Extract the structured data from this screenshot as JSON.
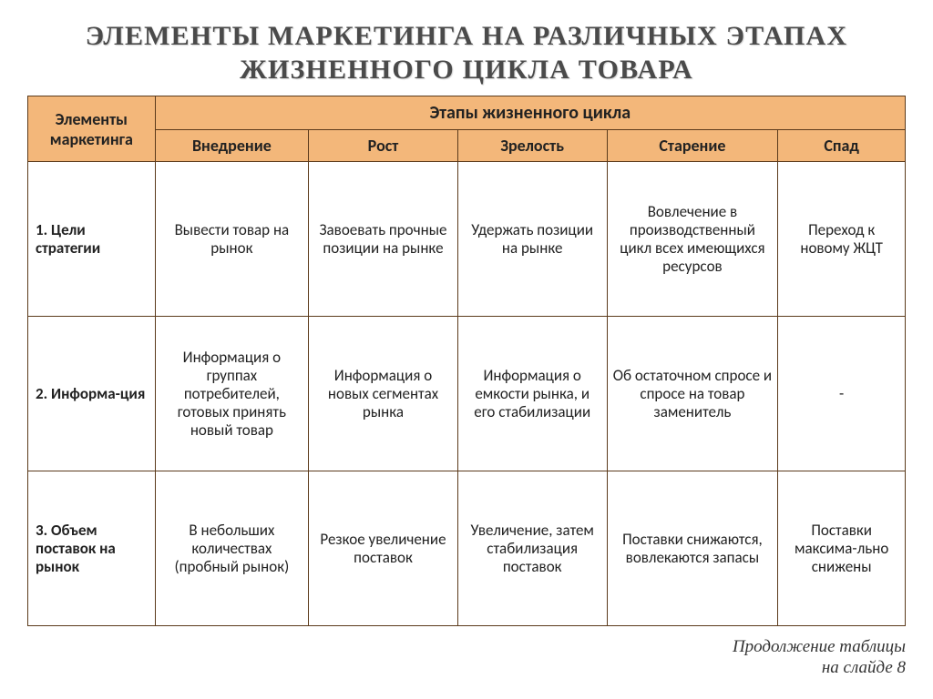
{
  "title": "ЭЛЕМЕНТЫ МАРКЕТИНГА НА РАЗЛИЧНЫХ ЭТАПАХ ЖИЗНЕННОГО ЦИКЛА ТОВАРА",
  "table": {
    "corner_label": "Элементы маркетинга",
    "group_header": "Этапы жизненного цикла",
    "stage_headers": [
      "Внедрение",
      "Рост",
      "Зрелость",
      "Старение",
      "Спад"
    ],
    "rows": [
      {
        "label": "1. Цели стратегии",
        "cells": [
          "Вывести товар на рынок",
          "Завоевать прочные позиции на рынке",
          "Удержать позиции на рынке",
          "Вовлечение в производственный цикл всех имеющихся ресурсов",
          "Переход к новому ЖЦТ"
        ]
      },
      {
        "label": "2. Информа-ция",
        "cells": [
          "Информация о группах потребителей, готовых принять новый товар",
          "Информация о новых сегментах рынка",
          "Информация о емкости рынка, и его стабилизации",
          "Об остаточном спросе и спросе на товар заменитель",
          "-"
        ]
      },
      {
        "label": "3. Объем поставок на рынок",
        "cells": [
          "В небольших количествах (пробный рынок)",
          "Резкое увеличение поставок",
          "Увеличение, затем стабилизация поставок",
          "Поставки снижаются, вовлекаются запасы",
          "Поставки максима-льно снижены"
        ]
      }
    ]
  },
  "footer_line1": "Продолжение таблицы",
  "footer_line2": "на слайде 8",
  "styling": {
    "header_bg": "#f3b77a",
    "border_color": "#5b3a1b",
    "title_fontsize_pt": 22,
    "header_fontsize_pt": 14,
    "cell_fontsize_pt": 13,
    "col_widths_pct": [
      14.5,
      17.5,
      17,
      17,
      19.5,
      14.5
    ]
  }
}
